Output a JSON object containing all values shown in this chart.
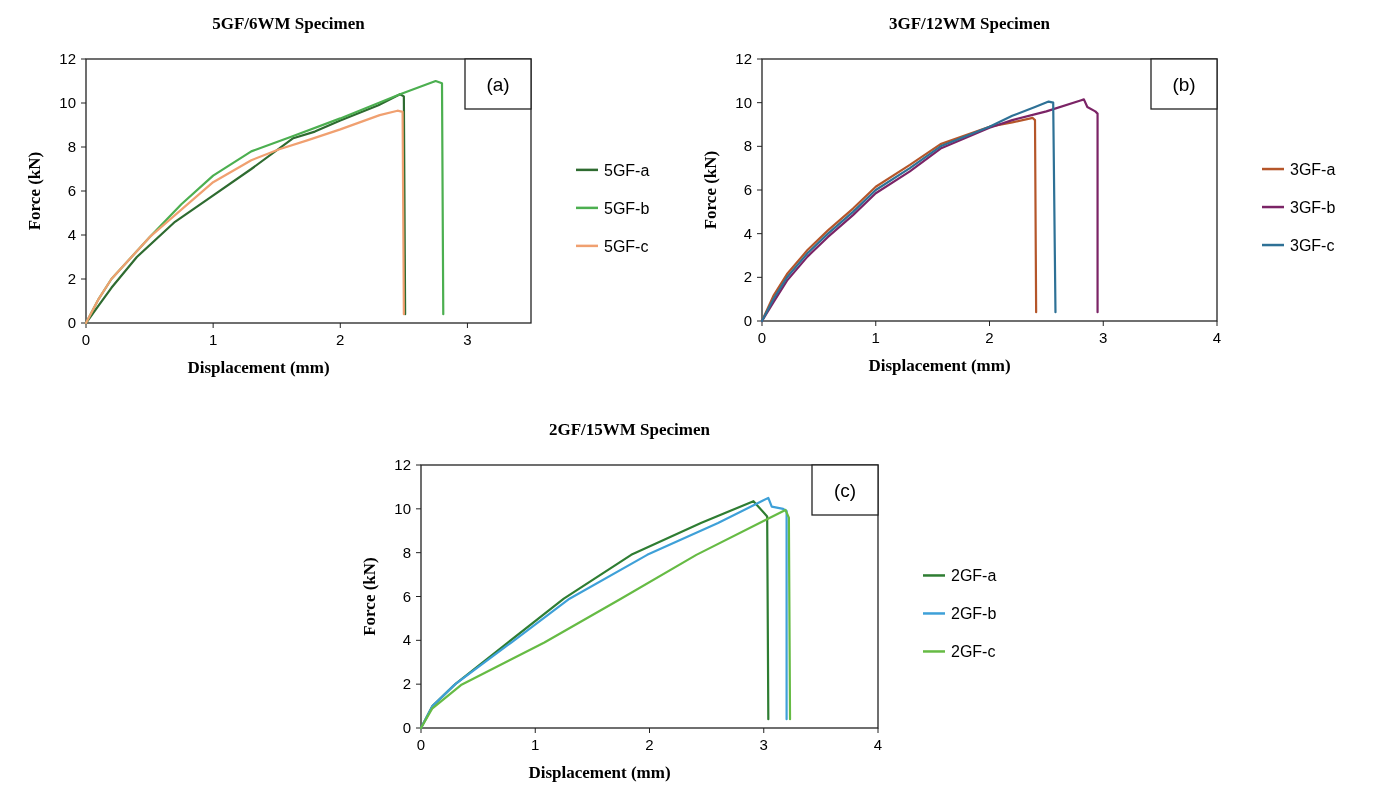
{
  "chart_data": [
    {
      "type": "line",
      "title": "5GF/6WM Specimen",
      "xlabel": "Displacement (mm)",
      "ylabel": "Force (kN)",
      "xlim": [
        0,
        3.5
      ],
      "xticks": [
        0,
        1,
        2,
        3
      ],
      "ylim": [
        0,
        12
      ],
      "yticks": [
        0,
        2,
        4,
        6,
        8,
        10,
        12
      ],
      "grid": false,
      "legend": "right",
      "annotations": [
        "(a)"
      ],
      "series": [
        {
          "name": "5GF-a",
          "color": "#2e6b30",
          "x": [
            0,
            0.1,
            0.2,
            0.4,
            0.7,
            0.95,
            1.3,
            1.63,
            1.8,
            2.0,
            2.3,
            2.47,
            2.5,
            2.51
          ],
          "values": [
            0,
            0.8,
            1.6,
            3.0,
            4.6,
            5.6,
            7.0,
            8.4,
            8.7,
            9.2,
            9.9,
            10.4,
            10.3,
            0.4
          ]
        },
        {
          "name": "5GF-b",
          "color": "#4caf50",
          "x": [
            0,
            0.1,
            0.2,
            0.5,
            0.75,
            1.0,
            1.3,
            1.63,
            2.0,
            2.47,
            2.75,
            2.8,
            2.81
          ],
          "values": [
            0,
            1.1,
            2.0,
            3.9,
            5.4,
            6.7,
            7.8,
            8.5,
            9.3,
            10.4,
            11.0,
            10.9,
            0.4
          ]
        },
        {
          "name": "5GF-c",
          "color": "#f0a070",
          "x": [
            0,
            0.1,
            0.2,
            0.5,
            1.0,
            1.3,
            1.52,
            1.74,
            2.0,
            2.31,
            2.45,
            2.49,
            2.5
          ],
          "values": [
            0,
            1.1,
            2.0,
            3.9,
            6.4,
            7.4,
            7.9,
            8.3,
            8.8,
            9.45,
            9.65,
            9.6,
            0.4
          ]
        }
      ]
    },
    {
      "type": "line",
      "title": "3GF/12WM Specimen",
      "xlabel": "Displacement (mm)",
      "ylabel": "Force (kN)",
      "xlim": [
        0,
        4
      ],
      "xticks": [
        0,
        1,
        2,
        3,
        4
      ],
      "ylim": [
        0,
        12
      ],
      "yticks": [
        0,
        2,
        4,
        6,
        8,
        10,
        12
      ],
      "grid": false,
      "legend": "right",
      "annotations": [
        "(b)"
      ],
      "series": [
        {
          "name": "3GF-a",
          "color": "#b5562a",
          "x": [
            0,
            0.1,
            0.22,
            0.4,
            0.58,
            0.8,
            1.0,
            1.3,
            1.57,
            2.0,
            2.2,
            2.38,
            2.4,
            2.41
          ],
          "values": [
            0,
            1.15,
            2.15,
            3.25,
            4.15,
            5.15,
            6.15,
            7.15,
            8.1,
            8.9,
            9.1,
            9.3,
            9.2,
            0.4
          ]
        },
        {
          "name": "3GF-b",
          "color": "#7b2466",
          "x": [
            0,
            0.1,
            0.22,
            0.4,
            0.58,
            0.8,
            1.0,
            1.3,
            1.57,
            2.0,
            2.2,
            2.5,
            2.8,
            2.83,
            2.86,
            2.93,
            2.95,
            2.95
          ],
          "values": [
            0,
            0.85,
            1.85,
            2.95,
            3.85,
            4.85,
            5.85,
            6.85,
            7.9,
            8.85,
            9.2,
            9.6,
            10.1,
            10.15,
            9.8,
            9.6,
            9.5,
            0.4
          ]
        },
        {
          "name": "3GF-c",
          "color": "#2e7196",
          "x": [
            0,
            0.1,
            0.22,
            0.4,
            0.58,
            0.8,
            1.0,
            1.3,
            1.57,
            2.0,
            2.2,
            2.4,
            2.52,
            2.56,
            2.58
          ],
          "values": [
            0,
            1.0,
            2.0,
            3.1,
            4.0,
            5.0,
            6.0,
            7.0,
            8.0,
            8.9,
            9.4,
            9.8,
            10.05,
            10.0,
            0.4
          ]
        }
      ]
    },
    {
      "type": "line",
      "title": "2GF/15WM Specimen",
      "xlabel": "Displacement (mm)",
      "ylabel": "Force (kN)",
      "xlim": [
        0,
        4
      ],
      "xticks": [
        0,
        1,
        2,
        3,
        4
      ],
      "ylim": [
        0,
        12
      ],
      "yticks": [
        0,
        2,
        4,
        6,
        8,
        10,
        12
      ],
      "grid": false,
      "legend": "right",
      "annotations": [
        "(c)"
      ],
      "series": [
        {
          "name": "2GF-a",
          "color": "#2e7d32",
          "x": [
            0,
            0.1,
            0.3,
            0.76,
            1.25,
            1.84,
            2.45,
            2.91,
            3.03,
            3.04
          ],
          "values": [
            0,
            1.0,
            2.0,
            3.9,
            5.9,
            7.9,
            9.35,
            10.35,
            9.65,
            0.4
          ]
        },
        {
          "name": "2GF-b",
          "color": "#3ea0d8",
          "x": [
            0,
            0.1,
            0.3,
            0.79,
            1.3,
            1.98,
            2.6,
            3.04,
            3.07,
            3.17,
            3.2,
            3.2
          ],
          "values": [
            0,
            1.0,
            2.0,
            3.9,
            5.9,
            7.9,
            9.35,
            10.5,
            10.1,
            10.0,
            9.9,
            0.4
          ]
        },
        {
          "name": "2GF-c",
          "color": "#66bb44",
          "x": [
            0,
            0.1,
            0.35,
            1.08,
            1.75,
            2.41,
            3.19,
            3.22,
            3.23
          ],
          "values": [
            0,
            0.9,
            1.96,
            3.9,
            5.9,
            7.9,
            9.95,
            9.6,
            0.4
          ]
        }
      ]
    }
  ]
}
